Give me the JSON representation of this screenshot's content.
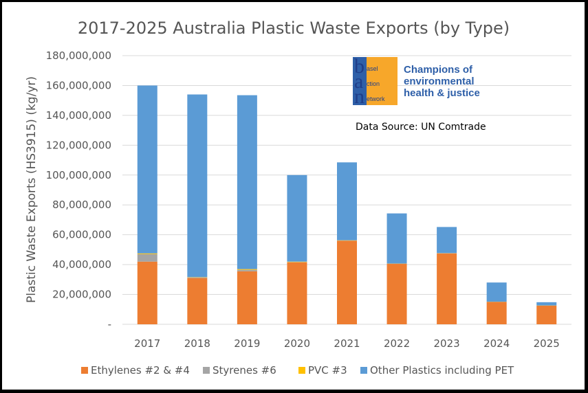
{
  "chart_data": {
    "type": "bar",
    "stacked": true,
    "title": "2017-2025 Australia Plastic Waste Exports (by Type)",
    "ylabel": "Plastic Waste Exports (HS3915) (kg/yr)",
    "xlabel": "",
    "categories": [
      "2017",
      "2018",
      "2019",
      "2020",
      "2021",
      "2022",
      "2023",
      "2024",
      "2025"
    ],
    "ylim": [
      0,
      180000000
    ],
    "yticks": [
      0,
      20000000,
      40000000,
      60000000,
      80000000,
      100000000,
      120000000,
      140000000,
      160000000,
      180000000
    ],
    "ytick_labels": [
      "-",
      "20,000,000",
      "40,000,000",
      "60,000,000",
      "80,000,000",
      "100,000,000",
      "120,000,000",
      "140,000,000",
      "160,000,000",
      "180,000,000"
    ],
    "grid": true,
    "legend_position": "bottom",
    "series": [
      {
        "name": "Ethylenes #2 & #4",
        "color": "#ed7d31",
        "values": [
          42000000,
          31000000,
          35500000,
          41500000,
          56000000,
          40500000,
          47500000,
          15000000,
          12500000
        ]
      },
      {
        "name": "Styrenes #6",
        "color": "#a5a5a5",
        "values": [
          5000000,
          500000,
          1000000,
          200000,
          100000,
          100000,
          100000,
          0,
          0
        ]
      },
      {
        "name": "PVC #3",
        "color": "#ffc000",
        "values": [
          500000,
          200000,
          500000,
          300000,
          200000,
          100000,
          100000,
          100000,
          100000
        ]
      },
      {
        "name": "Other Plastics including PET",
        "color": "#5b9bd5",
        "values": [
          112500000,
          122300000,
          116500000,
          58000000,
          52200000,
          33600000,
          17500000,
          12900000,
          2200000
        ]
      }
    ]
  },
  "source_note": "Data Source: UN Comtrade",
  "logo": {
    "letters": [
      "b",
      "a",
      "n"
    ],
    "words": [
      "asel",
      "ction",
      "etwork"
    ],
    "tagline": [
      "Champions of",
      "environmental",
      "health & justice"
    ],
    "box_color": "#f7a72a",
    "text_color": "#1f3e8a"
  }
}
